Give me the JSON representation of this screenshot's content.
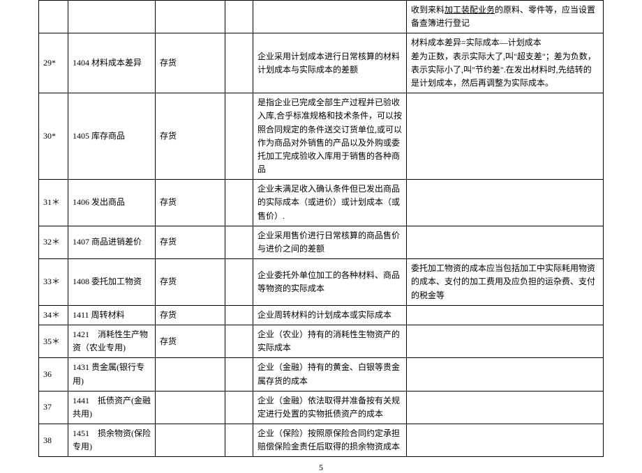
{
  "page_number": "5",
  "rows": [
    {
      "idx": "",
      "code_name": "",
      "category": "",
      "col4": "",
      "desc": "",
      "note_html": "收到来料<span class='underline'>加工装配业务</span>的原料、零件等，应当设置备查簿进行登记"
    },
    {
      "idx": "29*",
      "code_name": "1404 材料成本差异",
      "category": "存货",
      "col4": "",
      "desc": "企业采用计划成本进行日常核算的材料计划成本与实际成本的差额",
      "note": "材料成本差异=实际成本—计划成本\n差为正数，表示实际大了,叫\"超支差\"；差为负数，表示实际小了,叫\"节约差\".在发出材料时,先结转的是计划成本，然后再调整为实际成本。"
    },
    {
      "idx": "30*",
      "code_name": "1405 库存商品",
      "category": "存货",
      "col4": "",
      "desc": "是指企业已完成全部生产过程并已验收入库,合乎标准规格和技术条件，可以按照合同规定的条件送交订货单位,或可以作为商品对外销售的产品以及外购或委托加工完成验收入库用于销售的各种商品",
      "note": ""
    },
    {
      "idx": "31＊",
      "code_name": "1406 发出商品",
      "category": "存货",
      "col4": "",
      "desc": "企业未满足收入确认条件但已发出商品的实际成本（或进价）或计划成本（或售价）.",
      "note": ""
    },
    {
      "idx": "32＊",
      "code_name": "1407 商品进销差价",
      "category": "存货",
      "col4": "",
      "desc": "企业采用售价进行日常核算的商品售价与进价之间的差额",
      "note": ""
    },
    {
      "idx": "33＊",
      "code_name": "1408 委托加工物资",
      "category": "存货",
      "col4": "",
      "desc": "企业委托外单位加工的各种材料、商品等物资的实际成本",
      "note": "委托加工物资的成本应当包括加工中实际耗用物资的成本、支付的加工费用及应负担的运杂费、支付的税金等"
    },
    {
      "idx": "34＊",
      "code_name": "1411 周转材料",
      "category": "存货",
      "col4": "",
      "desc": "企业周转材料的计划成本或实际成本",
      "note": ""
    },
    {
      "idx": "35＊",
      "code_name": "1421　消耗性生产物资（农业专用)",
      "category": "存货",
      "col4": "",
      "desc": "企业（农业）持有的消耗性生物资产的实际成本",
      "note": ""
    },
    {
      "idx": "36",
      "code_name": "1431 贵金属(银行专用)",
      "category": "",
      "col4": "",
      "desc": "企业（金融）持有的黄金、白银等贵金属存货的成本",
      "note": ""
    },
    {
      "idx": "37",
      "code_name": "1441　抵债资产(金融共用)",
      "category": "",
      "col4": "",
      "desc": "企业（金融）依法取得并准备按有关规定进行处置的实物抵债资产的成本",
      "note": ""
    },
    {
      "idx": "38",
      "code_name": "1451　损余物资(保险专用)",
      "category": "",
      "col4": "",
      "desc": "企业（保险）按照原保险合同约定承担赔偿保险金责任后取得的损余物资成本",
      "note": ""
    }
  ]
}
